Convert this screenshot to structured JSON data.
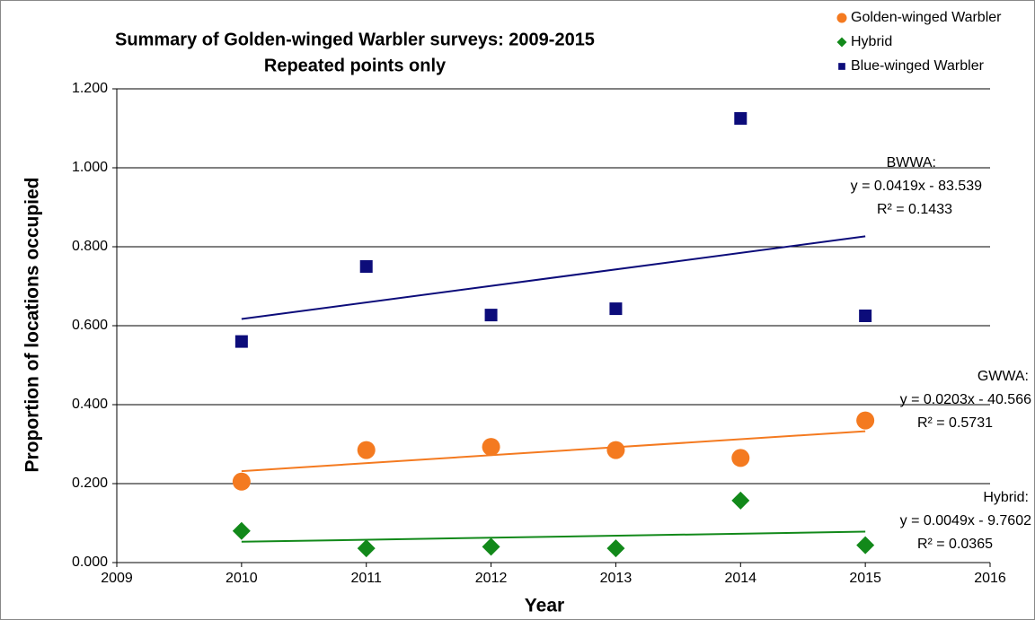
{
  "chart_data": {
    "type": "scatter",
    "title": "Summary of Golden-winged Warbler surveys: 2009-2015",
    "subtitle": "Repeated points only",
    "x_label": "Year",
    "y_label": "Proportion of locations occupied",
    "xlim": [
      2009,
      2016
    ],
    "xticks": [
      2009,
      2010,
      2011,
      2012,
      2013,
      2014,
      2015,
      2016
    ],
    "ylim": [
      0,
      1.2
    ],
    "yticks": [
      {
        "value": 0,
        "label": "0.000"
      },
      {
        "value": 0.2,
        "label": "0.200"
      },
      {
        "value": 0.4,
        "label": "0.400"
      },
      {
        "value": 0.6,
        "label": "0.600"
      },
      {
        "value": 0.8,
        "label": "0.800"
      },
      {
        "value": 1.0,
        "label": "1.000"
      },
      {
        "value": 1.2,
        "label": "1.200"
      }
    ],
    "grid": true,
    "trendline": "linear",
    "legend": "top-right",
    "x": [
      2010,
      2011,
      2012,
      2013,
      2014,
      2015
    ],
    "series": [
      {
        "name": "Golden-winged Warbler",
        "color": "#f47a20",
        "marker": "circle",
        "values": [
          0.205,
          0.285,
          0.293,
          0.285,
          0.265,
          0.36
        ]
      },
      {
        "name": "Hybrid",
        "color": "#12891a",
        "marker": "diamond",
        "values": [
          0.08,
          0.036,
          0.04,
          0.036,
          0.157,
          0.044
        ]
      },
      {
        "name": "Blue-winged Warbler",
        "color": "#0c0c7a",
        "marker": "square",
        "values": [
          0.56,
          0.75,
          0.627,
          0.643,
          1.125,
          0.625
        ]
      }
    ],
    "annotations": [
      [
        "GWWA:",
        "y = 0.0203x - 40.566",
        "R² = 0.5731"
      ],
      [
        "Hybrid:",
        "y = 0.0049x - 9.7602",
        "R² = 0.0365"
      ],
      [
        "BWWA:",
        "y = 0.0419x - 83.539",
        "R² = 0.1433"
      ]
    ]
  }
}
